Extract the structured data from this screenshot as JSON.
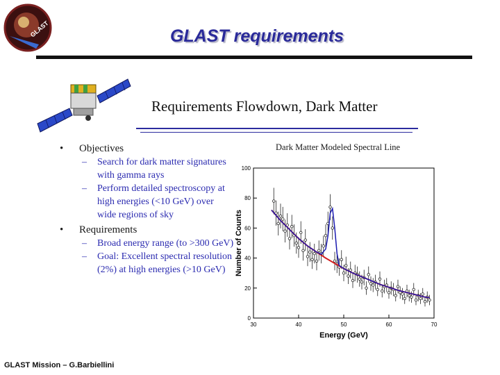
{
  "header": {
    "title": "GLAST requirements",
    "logo_text": "GLAST"
  },
  "slide": {
    "heading": "Requirements Flowdown, Dark Matter",
    "sections": [
      {
        "label": "Objectives",
        "items": [
          "Search for dark matter signatures with gamma rays",
          "Perform detailed spectroscopy at high energies (<10 GeV) over wide regions of sky"
        ]
      },
      {
        "label": "Requirements",
        "items": [
          "Broad energy range (to >300 GeV)",
          "Goal: Excellent spectral resolution (2%) at high energies (>10 GeV)"
        ]
      }
    ]
  },
  "footer": {
    "text": "GLAST Mission – G.Barbiellini"
  },
  "chart_data": {
    "type": "scatter",
    "title": "Dark Matter Modeled Spectral Line",
    "xlabel": "Energy (GeV)",
    "ylabel": "Number of Counts",
    "xlim": [
      30,
      70
    ],
    "ylim": [
      0,
      100
    ],
    "xticks": [
      "30",
      "40",
      "50",
      "60",
      "70"
    ],
    "yticks": [
      "0",
      "20",
      "40",
      "60",
      "80",
      "100"
    ],
    "grid": false,
    "points": {
      "x": [
        34.5,
        35.0,
        35.5,
        36.0,
        36.5,
        37.0,
        37.5,
        38.0,
        38.5,
        39.0,
        39.5,
        40.0,
        40.5,
        41.0,
        41.5,
        42.0,
        42.5,
        43.0,
        43.5,
        44.0,
        44.5,
        45.0,
        45.5,
        46.0,
        46.5,
        47.0,
        47.5,
        48.0,
        48.5,
        49.0,
        49.5,
        50.0,
        50.5,
        51.0,
        51.5,
        52.0,
        52.5,
        53.0,
        53.5,
        54.0,
        54.5,
        55.0,
        55.5,
        56.0,
        56.5,
        57.0,
        57.5,
        58.0,
        58.5,
        59.0,
        59.5,
        60.0,
        60.5,
        61.0,
        61.5,
        62.0,
        62.5,
        63.0,
        63.5,
        64.0,
        64.5,
        65.0,
        65.5,
        66.0,
        66.5,
        67.0,
        67.5,
        68.0,
        68.5,
        69.0
      ],
      "y": [
        78,
        70,
        63,
        68,
        66,
        58,
        62,
        53,
        61,
        55,
        50,
        47,
        57,
        45,
        52,
        41,
        44,
        39,
        43,
        38,
        45,
        43,
        48,
        55,
        63,
        74,
        60,
        38,
        36,
        34,
        39,
        30,
        35,
        28,
        32,
        25,
        30,
        29,
        26,
        24,
        27,
        20,
        29,
        23,
        22,
        24,
        19,
        26,
        18,
        21,
        22,
        17,
        20,
        19,
        15,
        21,
        17,
        16,
        13,
        18,
        15,
        14,
        19,
        12,
        15,
        13,
        16,
        11,
        14,
        12
      ]
    },
    "series": [
      {
        "name": "",
        "color": "#d42020",
        "x": [
          34,
          36,
          38,
          40,
          42,
          44,
          46,
          48,
          50,
          52,
          54,
          56,
          58,
          60,
          62,
          64,
          66,
          68,
          69
        ],
        "y": [
          72,
          65,
          59,
          53,
          48,
          44,
          40,
          36.5,
          33,
          30,
          27.5,
          25,
          22.5,
          20.5,
          18.5,
          17,
          15.5,
          14,
          13.5
        ]
      },
      {
        "name": "",
        "color": "#1a1ab0",
        "x": [
          34,
          36,
          38,
          40,
          42,
          44,
          45,
          46,
          46.5,
          47,
          47.5,
          48,
          48.5,
          49,
          50,
          52,
          54,
          56,
          58,
          60,
          62,
          64,
          66,
          68,
          69
        ],
        "y": [
          72,
          65,
          59,
          53,
          48,
          44,
          42.5,
          46,
          55,
          70,
          73,
          60,
          43,
          35,
          33,
          30,
          27.5,
          25,
          22.5,
          20.5,
          18.5,
          17,
          15.5,
          14,
          13.5
        ]
      }
    ]
  }
}
